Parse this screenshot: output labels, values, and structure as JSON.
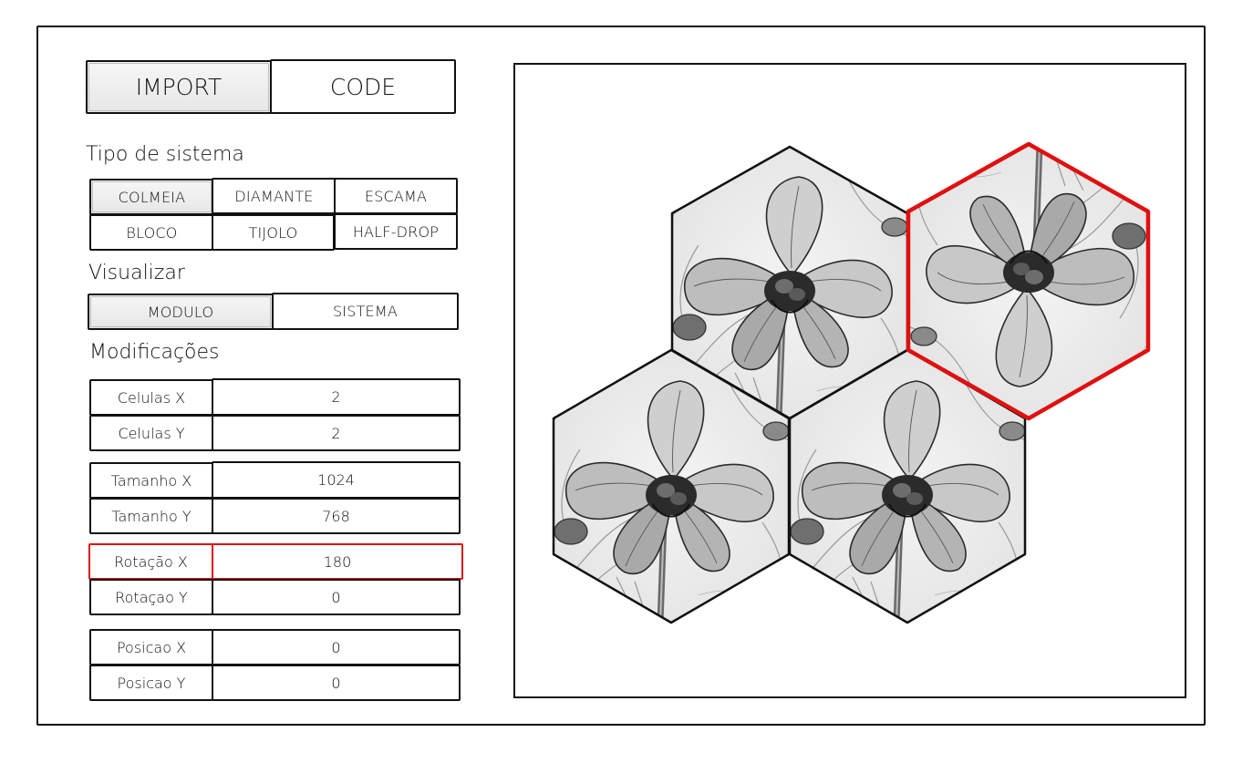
{
  "top_tabs": {
    "import_label": "IMPORT",
    "code_label": "CODE"
  },
  "system_type": {
    "heading": "Tipo de sistema",
    "options": [
      "COLMEIA",
      "DIAMANTE",
      "ESCAMA",
      "BLOCO",
      "TIJOLO",
      "HALF-DROP"
    ],
    "selected": "COLMEIA"
  },
  "visualizar": {
    "heading": "Visualizar",
    "options": [
      "MODULO",
      "SISTEMA"
    ],
    "selected": "MODULO"
  },
  "modificacoes": {
    "heading": "Modificações",
    "rows": [
      {
        "label": "Celulas X",
        "value": "2"
      },
      {
        "label": "Celulas Y",
        "value": "2"
      },
      {
        "label": "Tamanho X",
        "value": "1024"
      },
      {
        "label": "Tamanho Y",
        "value": "768"
      },
      {
        "label": "Rotação X",
        "value": "180"
      },
      {
        "label": "Rotaçao Y",
        "value": "0"
      },
      {
        "label": "Posicao X",
        "value": "0"
      },
      {
        "label": "Posicao Y",
        "value": "0"
      }
    ],
    "highlight_row": "Rotação X",
    "highlight_color": "#e01010"
  },
  "preview": {
    "tiles": [
      "orchid-hexagon",
      "orchid-hexagon-rotated-180",
      "orchid-hexagon",
      "orchid-hexagon"
    ],
    "selected_tile_color": "#e01010"
  }
}
